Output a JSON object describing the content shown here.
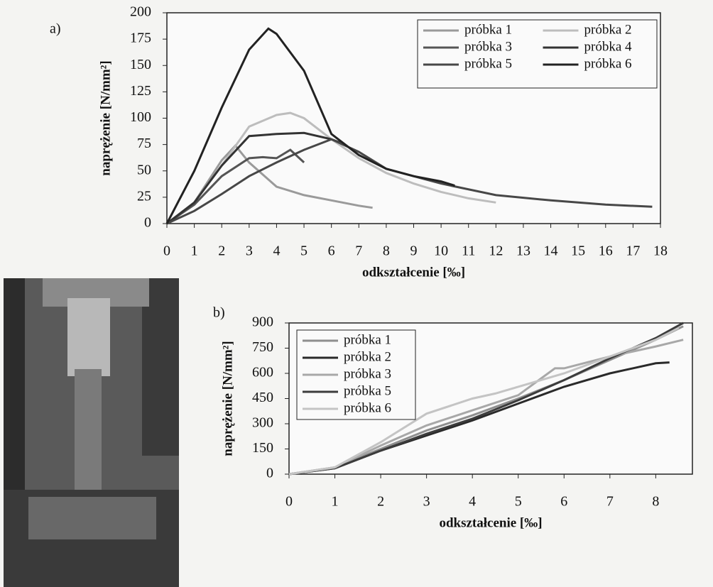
{
  "chart_data": [
    {
      "type": "line",
      "label": "a)",
      "x_label": "odkształcenie [‰]",
      "y_label": "naprężenie [N/mm²]",
      "xlim": [
        0,
        18
      ],
      "xticks": [
        0,
        1,
        2,
        3,
        4,
        5,
        6,
        7,
        8,
        9,
        10,
        11,
        12,
        13,
        14,
        15,
        16,
        17,
        18
      ],
      "ylim": [
        0,
        200
      ],
      "yticks": [
        0,
        25,
        50,
        75,
        100,
        125,
        150,
        175,
        200
      ],
      "series": [
        {
          "name": "próbka 1",
          "color": "#9a9a9a",
          "x": [
            0,
            1,
            2,
            2.5,
            3,
            4,
            5,
            6,
            7,
            7.5
          ],
          "values": [
            0,
            20,
            60,
            74,
            58,
            35,
            27,
            22,
            17,
            15
          ]
        },
        {
          "name": "próbka 2",
          "color": "#bdbdbd",
          "x": [
            0,
            1,
            2,
            3,
            4,
            4.5,
            5,
            6,
            7,
            8,
            9,
            10,
            11,
            12
          ],
          "values": [
            0,
            20,
            55,
            92,
            103,
            105,
            100,
            80,
            62,
            48,
            38,
            30,
            24,
            20
          ]
        },
        {
          "name": "próbka 3",
          "color": "#555555",
          "x": [
            0,
            1,
            2,
            3,
            3.5,
            4,
            4.5,
            5
          ],
          "values": [
            0,
            18,
            45,
            62,
            63,
            62,
            70,
            58
          ]
        },
        {
          "name": "próbka 4",
          "color": "#333333",
          "x": [
            0,
            1,
            2,
            3,
            4,
            5,
            6,
            6.5
          ],
          "values": [
            0,
            20,
            55,
            83,
            85,
            86,
            80,
            75
          ]
        },
        {
          "name": "próbka 5",
          "color": "#474747",
          "x": [
            0,
            1,
            2,
            3,
            4,
            5,
            6,
            7,
            8,
            10,
            12,
            14,
            16,
            17.7
          ],
          "values": [
            0,
            12,
            28,
            45,
            58,
            70,
            80,
            68,
            52,
            38,
            27,
            22,
            18,
            16
          ]
        },
        {
          "name": "próbka 6",
          "color": "#222222",
          "x": [
            0,
            1,
            2,
            3,
            3.7,
            4,
            5,
            6,
            7,
            8,
            9,
            10,
            10.5
          ],
          "values": [
            0,
            50,
            110,
            165,
            185,
            180,
            145,
            85,
            65,
            52,
            45,
            40,
            36
          ]
        }
      ]
    },
    {
      "type": "line",
      "label": "b)",
      "x_label": "odkształcenie [‰]",
      "y_label": "naprężenie [N/mm²]",
      "xlim": [
        0,
        8.8
      ],
      "xticks": [
        0,
        1,
        2,
        3,
        4,
        5,
        6,
        7,
        8
      ],
      "ylim": [
        0,
        900
      ],
      "yticks": [
        0,
        150,
        300,
        450,
        600,
        750,
        900
      ],
      "series": [
        {
          "name": "próbka 1",
          "color": "#8f8f8f",
          "x": [
            0,
            1,
            2,
            3,
            4,
            5,
            6,
            7,
            8,
            8.6
          ],
          "values": [
            0,
            40,
            150,
            260,
            350,
            450,
            560,
            680,
            800,
            880
          ]
        },
        {
          "name": "próbka 2",
          "color": "#2a2a2a",
          "x": [
            0,
            1,
            2,
            3,
            4,
            5,
            6,
            7,
            8,
            8.3
          ],
          "values": [
            0,
            35,
            140,
            230,
            320,
            420,
            520,
            600,
            660,
            665
          ]
        },
        {
          "name": "próbka 3",
          "color": "#a8a8a8",
          "x": [
            0,
            1,
            2,
            3,
            4,
            5,
            5.8,
            6,
            7,
            8,
            8.6
          ],
          "values": [
            0,
            40,
            170,
            290,
            380,
            470,
            630,
            630,
            700,
            760,
            800
          ]
        },
        {
          "name": "próbka 5",
          "color": "#3c3c3c",
          "x": [
            0,
            1,
            2,
            3,
            4,
            5,
            6,
            7,
            8,
            8.6
          ],
          "values": [
            0,
            35,
            140,
            240,
            330,
            440,
            560,
            690,
            810,
            900
          ]
        },
        {
          "name": "próbka 6",
          "color": "#c4c4c4",
          "x": [
            0,
            1,
            2,
            3,
            4,
            4.5,
            5,
            6,
            7,
            8,
            8.5
          ],
          "values": [
            0,
            40,
            190,
            360,
            450,
            480,
            520,
            600,
            700,
            800,
            870
          ]
        }
      ]
    }
  ]
}
